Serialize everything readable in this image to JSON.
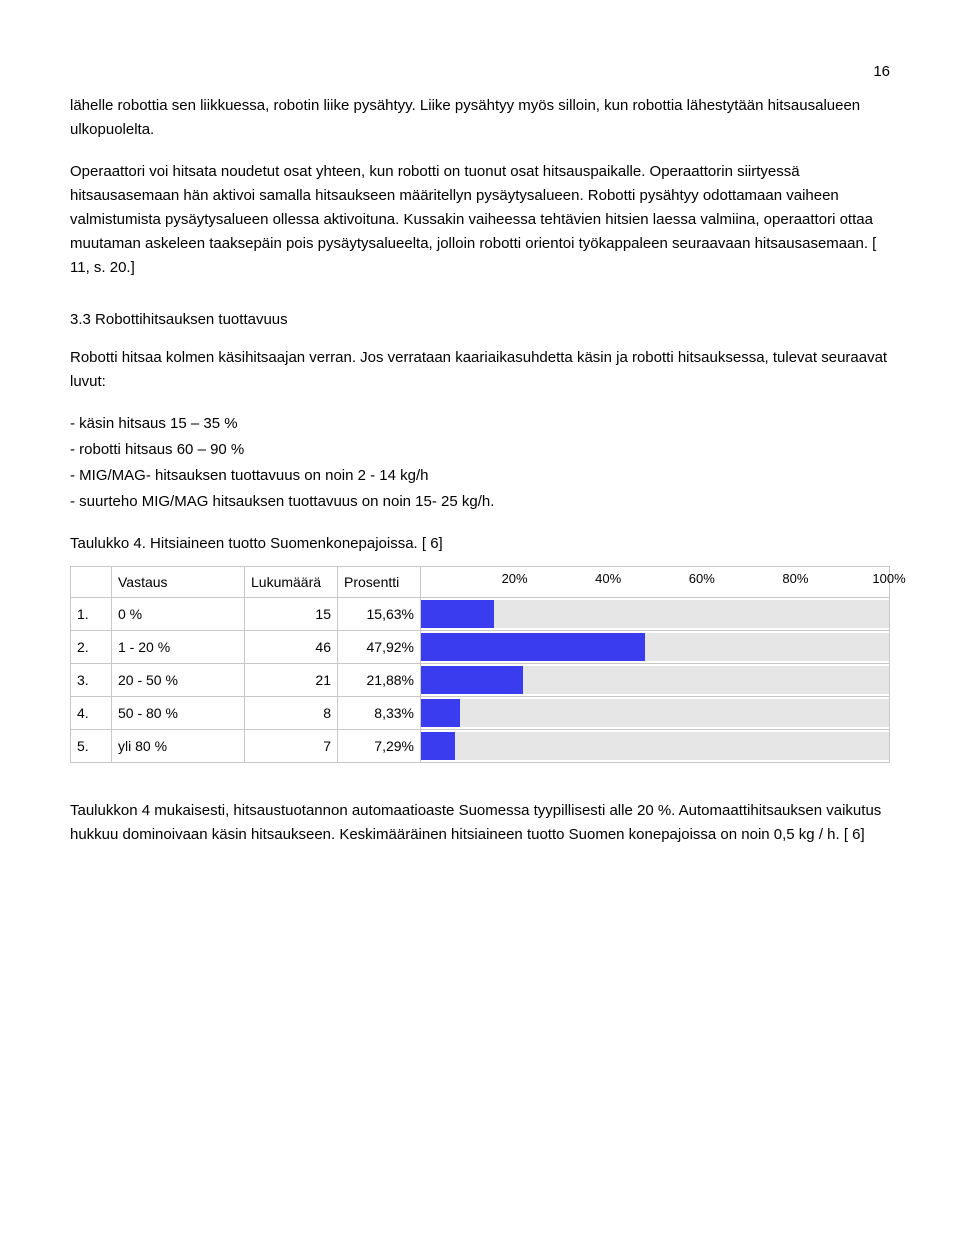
{
  "page_number": "16",
  "para1": "lähelle robottia sen liikkuessa, robotin liike pysähtyy. Liike pysähtyy myös silloin, kun robottia lähestytään hitsausalueen ulkopuolelta.",
  "para2": "Operaattori voi hitsata noudetut osat yhteen, kun robotti on tuonut osat hitsauspaikalle. Operaattorin siirtyessä hitsausasemaan hän aktivoi samalla hitsaukseen määritellyn pysäytysalueen. Robotti pysähtyy odottamaan vaiheen valmistumista pysäytysalueen ollessa aktivoituna. Kussakin vaiheessa tehtävien hitsien laessa valmiina, operaattori ottaa muutaman askeleen taaksepäin pois pysäytysalueelta, jolloin robotti orientoi työkappaleen seuraavaan hitsausasemaan. [ 11, s. 20.]",
  "section_heading": "3.3 Robottihitsauksen tuottavuus",
  "para3": "Robotti hitsaa kolmen käsihitsaajan verran. Jos verrataan kaariaikasuhdetta käsin ja robotti hitsauksessa, tulevat seuraavat luvut:",
  "list": [
    "- käsin hitsaus 15 – 35 %",
    "- robotti hitsaus 60 – 90 %",
    "- MIG/MAG- hitsauksen tuottavuus on noin 2 - 14 kg/h",
    "- suurteho MIG/MAG hitsauksen tuottavuus on noin 15- 25 kg/h."
  ],
  "table_caption": "Taulukko 4. Hitsiaineen tuotto Suomenkonepajoissa. [ 6]",
  "table": {
    "headers": {
      "blank": "",
      "answer": "Vastaus",
      "count": "Lukumäärä",
      "percent": "Prosentti"
    },
    "tick_labels": [
      "20%",
      "40%",
      "60%",
      "80%",
      "100%"
    ],
    "rows": [
      {
        "n": "1.",
        "answer": "0 %",
        "count": "15",
        "pct_text": "15,63%",
        "pct_val": 15.63
      },
      {
        "n": "2.",
        "answer": "1 - 20 %",
        "count": "46",
        "pct_text": "47,92%",
        "pct_val": 47.92
      },
      {
        "n": "3.",
        "answer": "20 - 50 %",
        "count": "21",
        "pct_text": "21,88%",
        "pct_val": 21.88
      },
      {
        "n": "4.",
        "answer": "50 - 80 %",
        "count": "8",
        "pct_text": "8,33%",
        "pct_val": 8.33
      },
      {
        "n": "5.",
        "answer": "yli 80 %",
        "count": "7",
        "pct_text": "7,29%",
        "pct_val": 7.29
      }
    ],
    "bar_color": "#3a3cf0",
    "bar_bg_color": "#e6e6e6",
    "border_color": "#c8c8c8"
  },
  "para4": "Taulukkon 4 mukaisesti, hitsaustuotannon automaatioaste Suomessa tyypillisesti alle 20 %. Automaattihitsauksen vaikutus hukkuu dominoivaan käsin hitsaukseen. Keskimääräinen hitsiaineen tuotto Suomen konepajoissa on noin 0,5 kg / h. [ 6]"
}
